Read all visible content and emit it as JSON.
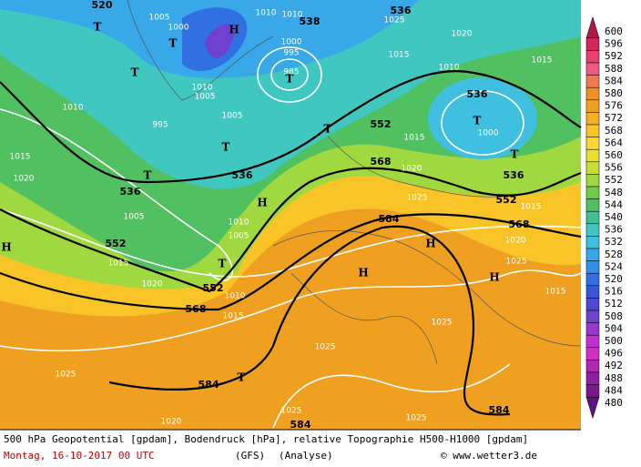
{
  "map": {
    "caption": "500 hPa Geopotential [gpdam], Bodendruck [hPa], relative Topographie H500-H1000 [gpdam]",
    "date": "Montag, 16-10-2017  00 UTC",
    "model": "(GFS)",
    "mode": "(Analyse)",
    "credit": "© www.wetter3.de",
    "colorbar": {
      "labels": [
        600,
        596,
        592,
        588,
        584,
        580,
        576,
        572,
        568,
        564,
        560,
        556,
        552,
        548,
        544,
        540,
        536,
        532,
        528,
        524,
        520,
        516,
        512,
        508,
        504,
        500,
        496,
        492,
        488,
        484,
        480
      ],
      "colors": [
        "#b01848",
        "#d02858",
        "#e84070",
        "#f05a80",
        "#f07a50",
        "#f09028",
        "#f0a020",
        "#f4b020",
        "#f8c428",
        "#f8d830",
        "#e8e030",
        "#c8dc38",
        "#a0d840",
        "#70cc48",
        "#50c060",
        "#40c090",
        "#40c8c0",
        "#40c0e0",
        "#38a8e8",
        "#3090e8",
        "#3070e0",
        "#3858d8",
        "#5048d0",
        "#7040d0",
        "#9838d0",
        "#c030d0",
        "#d030c0",
        "#b028b0",
        "#9020a0",
        "#781890",
        "#601080"
      ]
    },
    "contour_labels": [
      "520",
      "536",
      "538",
      "536",
      "552",
      "568",
      "536",
      "536",
      "536",
      "552",
      "568",
      "584",
      "552",
      "552",
      "568",
      "584",
      "584",
      "584"
    ],
    "pressure_labels": [
      "1005",
      "1000",
      "1010",
      "1010",
      "1025",
      "1020",
      "1000",
      "995",
      "985",
      "1010",
      "1005",
      "995",
      "1005",
      "1015",
      "1000",
      "1020",
      "1025",
      "1015",
      "1010",
      "1015",
      "1010",
      "1015",
      "1020",
      "1005",
      "1015",
      "1020",
      "1010",
      "1015",
      "1025",
      "1025",
      "1025",
      "1020",
      "1025",
      "1025",
      "1015",
      "1025",
      "1020",
      "1015",
      "1005",
      "1010"
    ],
    "centers": [
      "T",
      "T",
      "T",
      "T",
      "T",
      "T",
      "T",
      "T",
      "T",
      "T",
      "T",
      "H",
      "H",
      "H",
      "H",
      "H",
      "H"
    ]
  }
}
